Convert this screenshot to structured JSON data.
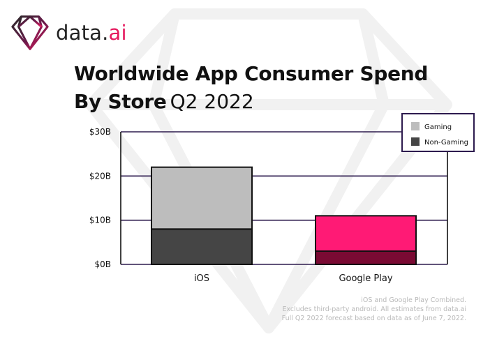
{
  "brand": {
    "name_main": "data.",
    "name_suffix": "ai"
  },
  "title": {
    "line1": "Worldwide App Consumer Spend",
    "line2_bold": "By Store",
    "line2_light": "Q2 2022"
  },
  "footnotes": [
    "iOS and Google Play Combined.",
    "Excludes third-party android. All estimates from data.ai",
    "Full Q2 2022 forecast based on data as of June 7, 2022."
  ],
  "chart_data": {
    "type": "bar",
    "stacked": true,
    "categories": [
      "iOS",
      "Google Play"
    ],
    "series": [
      {
        "name": "Non-Gaming",
        "values": [
          8,
          3
        ],
        "colors": [
          "#454545",
          "#7a0a33"
        ]
      },
      {
        "name": "Gaming",
        "values": [
          14,
          8
        ],
        "colors": [
          "#bdbdbd",
          "#ff1a75"
        ]
      }
    ],
    "ylim": [
      0,
      30
    ],
    "ytick_values": [
      0,
      10,
      20,
      30
    ],
    "ytick_labels": [
      "$0B",
      "$10B",
      "$20B",
      "$30B"
    ],
    "gridline_color": "#2d1b4e",
    "grid": true,
    "legend_position": "top-right",
    "legend": [
      {
        "label": "Gaming",
        "color": "#bdbdbd"
      },
      {
        "label": "Non-Gaming",
        "color": "#454545"
      }
    ]
  }
}
